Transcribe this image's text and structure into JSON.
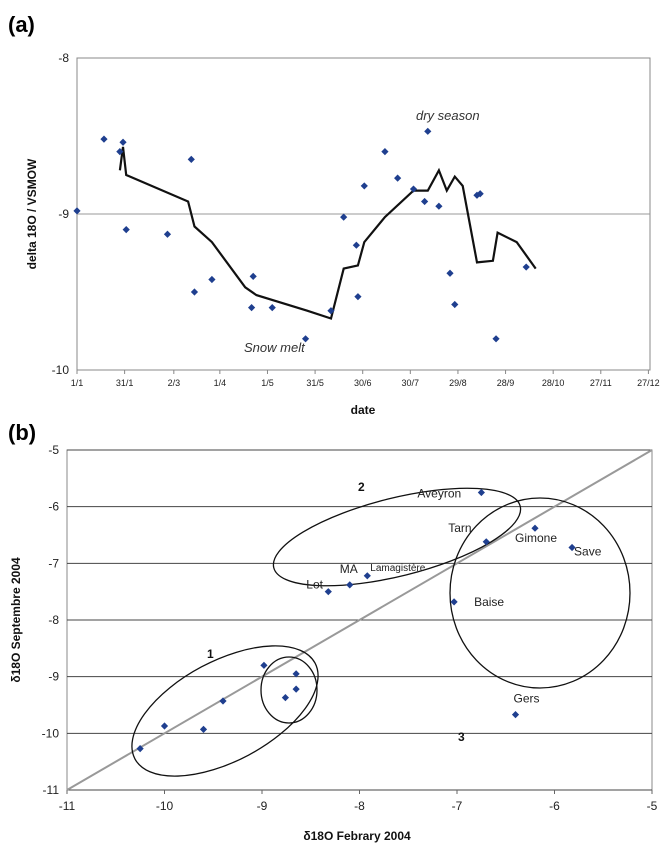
{
  "chart_data": [
    {
      "panel": "(a)",
      "type": "scatter",
      "ylabel": "delta 18O / VSMOW",
      "xlabel": "date",
      "ylim": [
        -10,
        -8
      ],
      "xlim": [
        0,
        361
      ],
      "x_ticks": [
        {
          "label": "1/1",
          "v": 0
        },
        {
          "label": "31/1",
          "v": 30
        },
        {
          "label": "2/3",
          "v": 61
        },
        {
          "label": "1/4",
          "v": 90
        },
        {
          "label": "1/5",
          "v": 120
        },
        {
          "label": "31/5",
          "v": 150
        },
        {
          "label": "30/6",
          "v": 180
        },
        {
          "label": "30/7",
          "v": 210
        },
        {
          "label": "29/8",
          "v": 240
        },
        {
          "label": "28/9",
          "v": 270
        },
        {
          "label": "28/10",
          "v": 300
        },
        {
          "label": "27/11",
          "v": 330
        },
        {
          "label": "27/12",
          "v": 360
        }
      ],
      "y_ticks": [
        -8,
        -9,
        -10
      ],
      "grid": "horizontal line at -9",
      "points": [
        {
          "x": 0,
          "y": -8.98
        },
        {
          "x": 17,
          "y": -8.52
        },
        {
          "x": 27,
          "y": -8.6
        },
        {
          "x": 29,
          "y": -8.54
        },
        {
          "x": 31,
          "y": -9.1
        },
        {
          "x": 57,
          "y": -9.13
        },
        {
          "x": 72,
          "y": -8.65
        },
        {
          "x": 74,
          "y": -9.5
        },
        {
          "x": 85,
          "y": -9.42
        },
        {
          "x": 110,
          "y": -9.6
        },
        {
          "x": 111,
          "y": -9.4
        },
        {
          "x": 123,
          "y": -9.6
        },
        {
          "x": 144,
          "y": -9.8
        },
        {
          "x": 160,
          "y": -9.62
        },
        {
          "x": 168,
          "y": -9.02
        },
        {
          "x": 177,
          "y": -9.53
        },
        {
          "x": 181,
          "y": -8.82
        },
        {
          "x": 194,
          "y": -8.6
        },
        {
          "x": 202,
          "y": -8.77
        },
        {
          "x": 212,
          "y": -8.84
        },
        {
          "x": 219,
          "y": -8.92
        },
        {
          "x": 221,
          "y": -8.47
        },
        {
          "x": 228,
          "y": -8.95
        },
        {
          "x": 235,
          "y": -9.38
        },
        {
          "x": 238,
          "y": -9.58
        },
        {
          "x": 252,
          "y": -8.88
        },
        {
          "x": 254,
          "y": -8.87
        },
        {
          "x": 264,
          "y": -9.8
        },
        {
          "x": 283,
          "y": -9.34
        },
        {
          "x": 176,
          "y": -9.2
        }
      ],
      "line": [
        [
          27,
          -8.72
        ],
        [
          29,
          -8.57
        ],
        [
          31,
          -8.75
        ],
        [
          70,
          -8.92
        ],
        [
          74,
          -9.08
        ],
        [
          85,
          -9.18
        ],
        [
          106,
          -9.47
        ],
        [
          113,
          -9.52
        ],
        [
          145,
          -9.62
        ],
        [
          160,
          -9.67
        ],
        [
          168,
          -9.35
        ],
        [
          177,
          -9.33
        ],
        [
          181,
          -9.18
        ],
        [
          194,
          -9.02
        ],
        [
          212,
          -8.85
        ],
        [
          221,
          -8.85
        ],
        [
          228,
          -8.72
        ],
        [
          233,
          -8.85
        ],
        [
          238,
          -8.76
        ],
        [
          243,
          -8.82
        ],
        [
          252,
          -9.31
        ],
        [
          262,
          -9.3
        ],
        [
          265,
          -9.12
        ],
        [
          277,
          -9.18
        ],
        [
          289,
          -9.35
        ]
      ],
      "annotations": [
        "dry season",
        "Snow melt"
      ]
    },
    {
      "panel": "(b)",
      "type": "scatter",
      "xlabel": "δ18O Febrary 2004",
      "ylabel": "δ18O Septembre 2004",
      "xlim": [
        -11,
        -5
      ],
      "ylim": [
        -11,
        -5
      ],
      "x_ticks": [
        -11,
        -10,
        -9,
        -8,
        -7,
        -6,
        -5
      ],
      "y_ticks": [
        -5,
        -6,
        -7,
        -8,
        -9,
        -10,
        -11
      ],
      "grid": "horizontal lines at each integer y",
      "reference_line": "1:1 line",
      "points": [
        {
          "x": -10.25,
          "y": -10.27
        },
        {
          "x": -10.0,
          "y": -9.87
        },
        {
          "x": -9.6,
          "y": -9.93
        },
        {
          "x": -9.4,
          "y": -9.43
        },
        {
          "x": -8.98,
          "y": -8.8
        },
        {
          "x": -8.76,
          "y": -9.37
        },
        {
          "x": -8.65,
          "y": -8.95
        },
        {
          "x": -8.65,
          "y": -9.22
        },
        {
          "label": "Lot",
          "x": -8.32,
          "y": -7.5
        },
        {
          "label": "MA",
          "x": -8.1,
          "y": -7.38
        },
        {
          "label": "Lamagistère",
          "x": -7.92,
          "y": -7.22
        },
        {
          "label": "Aveyron",
          "x": -6.75,
          "y": -5.75
        },
        {
          "label": "Tarn",
          "x": -6.7,
          "y": -6.62
        },
        {
          "label": "Gimone",
          "x": -6.2,
          "y": -6.38
        },
        {
          "label": "Save",
          "x": -5.82,
          "y": -6.72
        },
        {
          "label": "Baise",
          "x": -7.03,
          "y": -7.68
        },
        {
          "label": "Gers",
          "x": -6.4,
          "y": -9.67
        }
      ],
      "groups": [
        "1",
        "2",
        "3"
      ]
    }
  ]
}
